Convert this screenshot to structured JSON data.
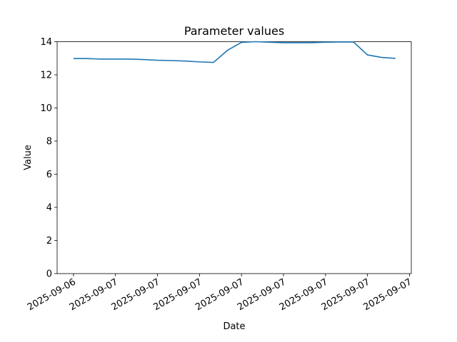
{
  "chart_data": {
    "type": "line",
    "title": "Parameter values",
    "x_label": "Date",
    "y_label": "Value",
    "x": [
      0,
      1,
      2,
      3,
      4,
      5,
      6,
      7,
      8,
      9,
      10,
      11,
      12,
      13,
      14,
      15,
      16,
      17,
      18,
      19,
      20,
      21,
      22,
      23
    ],
    "series": [
      {
        "color": "#1f77b4",
        "values": [
          12.98,
          12.98,
          12.95,
          12.95,
          12.95,
          12.92,
          12.88,
          12.86,
          12.83,
          12.78,
          12.75,
          13.48,
          13.96,
          14.0,
          13.97,
          13.94,
          13.94,
          13.94,
          13.97,
          13.98,
          13.98,
          13.2,
          13.05,
          12.99
        ]
      }
    ],
    "xlim": [
      -1.17,
      24.13
    ],
    "xticks": [
      {
        "value": 0,
        "label": "2025-09-06"
      },
      {
        "value": 3,
        "label": "2025-09-07"
      },
      {
        "value": 6,
        "label": "2025-09-07"
      },
      {
        "value": 9,
        "label": "2025-09-07"
      },
      {
        "value": 12,
        "label": "2025-09-07"
      },
      {
        "value": 15,
        "label": "2025-09-07"
      },
      {
        "value": 18,
        "label": "2025-09-07"
      },
      {
        "value": 21,
        "label": "2025-09-07"
      },
      {
        "value": 24,
        "label": "2025-09-07"
      }
    ],
    "ylim": [
      0,
      14
    ],
    "yticks": [
      0,
      2,
      4,
      6,
      8,
      10,
      12,
      14
    ],
    "grid": false
  }
}
